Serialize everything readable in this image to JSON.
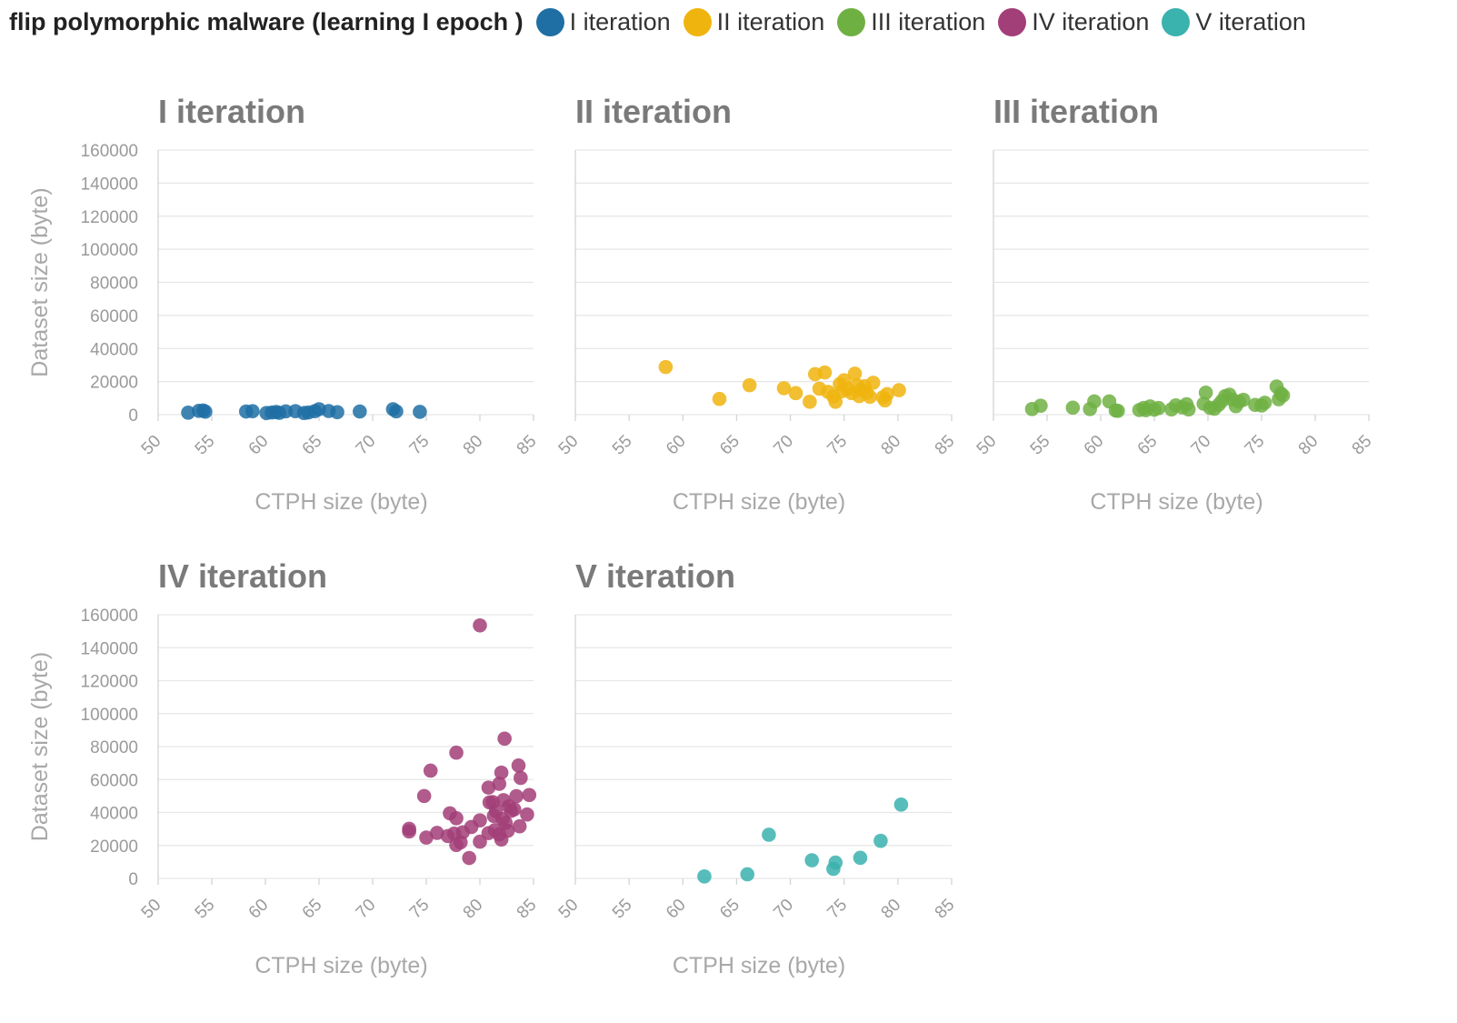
{
  "header": {
    "title": "flip polymorphic malware (learning I epoch )",
    "legend": [
      {
        "label": "I iteration",
        "color": "#1f6fa5"
      },
      {
        "label": "II iteration",
        "color": "#f0b40e"
      },
      {
        "label": "III iteration",
        "color": "#6fb043"
      },
      {
        "label": "IV iteration",
        "color": "#a23e78"
      },
      {
        "label": "V iteration",
        "color": "#3ab2ae"
      }
    ]
  },
  "chart_data": [
    {
      "type": "scatter",
      "title": "I iteration",
      "color": "#1f6fa5",
      "xlabel": "CTPH size (byte)",
      "ylabel": "Dataset size (byte)",
      "xlim": [
        50,
        85
      ],
      "ylim": [
        0,
        160000
      ],
      "xticks": [
        "50",
        "55",
        "60",
        "65",
        "70",
        "75",
        "80",
        "85"
      ],
      "yticks": [
        "0",
        "20000",
        "40000",
        "60000",
        "80000",
        "100000",
        "120000",
        "140000",
        "160000"
      ],
      "points": [
        [
          52.8,
          1200
        ],
        [
          53.8,
          2300
        ],
        [
          54.2,
          2500
        ],
        [
          54.4,
          1800
        ],
        [
          58.2,
          1900
        ],
        [
          58.8,
          2100
        ],
        [
          60.1,
          1000
        ],
        [
          60.6,
          1300
        ],
        [
          61.0,
          1600
        ],
        [
          61.3,
          1100
        ],
        [
          61.9,
          2000
        ],
        [
          62.8,
          2100
        ],
        [
          63.6,
          1000
        ],
        [
          64.0,
          1300
        ],
        [
          64.6,
          2100
        ],
        [
          65.0,
          3300
        ],
        [
          65.9,
          2200
        ],
        [
          66.7,
          1500
        ],
        [
          68.8,
          1900
        ],
        [
          71.9,
          3300
        ],
        [
          72.2,
          2000
        ],
        [
          74.4,
          1700
        ]
      ]
    },
    {
      "type": "scatter",
      "title": "II iteration",
      "color": "#f0b40e",
      "xlabel": "CTPH size (byte)",
      "ylabel": "",
      "xlim": [
        50,
        85
      ],
      "ylim": [
        0,
        160000
      ],
      "xticks": [
        "50",
        "55",
        "60",
        "65",
        "70",
        "75",
        "80",
        "85"
      ],
      "points": [
        [
          58.4,
          28800
        ],
        [
          63.4,
          9500
        ],
        [
          66.2,
          17800
        ],
        [
          69.4,
          16000
        ],
        [
          70.5,
          13000
        ],
        [
          71.8,
          7800
        ],
        [
          72.3,
          24500
        ],
        [
          72.7,
          15700
        ],
        [
          73.2,
          25500
        ],
        [
          73.5,
          13800
        ],
        [
          74.0,
          11000
        ],
        [
          74.2,
          7800
        ],
        [
          74.6,
          18500
        ],
        [
          74.8,
          14200
        ],
        [
          75.0,
          20800
        ],
        [
          75.3,
          15500
        ],
        [
          75.7,
          13000
        ],
        [
          76.0,
          24800
        ],
        [
          76.2,
          17800
        ],
        [
          76.4,
          11200
        ],
        [
          76.6,
          15000
        ],
        [
          76.9,
          17200
        ],
        [
          77.1,
          13200
        ],
        [
          77.4,
          10800
        ],
        [
          77.7,
          19300
        ],
        [
          78.6,
          10500
        ],
        [
          78.8,
          8600
        ],
        [
          79.0,
          12400
        ],
        [
          80.1,
          14800
        ]
      ]
    },
    {
      "type": "scatter",
      "title": "III iteration",
      "color": "#6fb043",
      "xlabel": "CTPH size (byte)",
      "ylabel": "",
      "xlim": [
        50,
        85
      ],
      "ylim": [
        0,
        160000
      ],
      "xticks": [
        "50",
        "55",
        "60",
        "65",
        "70",
        "75",
        "80",
        "85"
      ],
      "points": [
        [
          53.6,
          3400
        ],
        [
          54.4,
          5400
        ],
        [
          57.4,
          4200
        ],
        [
          59.0,
          3400
        ],
        [
          59.4,
          8000
        ],
        [
          60.8,
          8000
        ],
        [
          61.4,
          2500
        ],
        [
          61.6,
          2300
        ],
        [
          63.6,
          2800
        ],
        [
          64.0,
          4000
        ],
        [
          64.2,
          2700
        ],
        [
          64.6,
          5000
        ],
        [
          65.0,
          3000
        ],
        [
          65.4,
          4000
        ],
        [
          66.6,
          3200
        ],
        [
          67.0,
          5600
        ],
        [
          67.6,
          4400
        ],
        [
          68.0,
          6300
        ],
        [
          68.2,
          3200
        ],
        [
          69.6,
          6600
        ],
        [
          69.8,
          13300
        ],
        [
          70.2,
          4100
        ],
        [
          70.6,
          3600
        ],
        [
          71.0,
          6000
        ],
        [
          71.3,
          8300
        ],
        [
          71.6,
          11200
        ],
        [
          72.0,
          12100
        ],
        [
          72.3,
          9000
        ],
        [
          72.6,
          5100
        ],
        [
          72.9,
          7800
        ],
        [
          73.3,
          9000
        ],
        [
          74.4,
          5900
        ],
        [
          75.0,
          5500
        ],
        [
          75.3,
          7200
        ],
        [
          76.4,
          17000
        ],
        [
          76.6,
          9300
        ],
        [
          76.8,
          12800
        ],
        [
          77.0,
          11600
        ]
      ]
    },
    {
      "type": "scatter",
      "title": "IV iteration",
      "color": "#a23e78",
      "xlabel": "CTPH size (byte)",
      "ylabel": "Dataset size (byte)",
      "xlim": [
        50,
        85
      ],
      "ylim": [
        0,
        160000
      ],
      "xticks": [
        "50",
        "55",
        "60",
        "65",
        "70",
        "75",
        "80",
        "85"
      ],
      "yticks": [
        "0",
        "20000",
        "40000",
        "60000",
        "80000",
        "100000",
        "120000",
        "140000",
        "160000"
      ],
      "points": [
        [
          80.0,
          153500
        ],
        [
          82.3,
          84800
        ],
        [
          77.8,
          76300
        ],
        [
          83.6,
          68500
        ],
        [
          75.4,
          65400
        ],
        [
          82.0,
          64200
        ],
        [
          83.8,
          61000
        ],
        [
          81.8,
          57400
        ],
        [
          80.8,
          55100
        ],
        [
          74.8,
          50000
        ],
        [
          83.4,
          49900
        ],
        [
          84.6,
          50600
        ],
        [
          81.2,
          46300
        ],
        [
          82.2,
          47500
        ],
        [
          82.7,
          43700
        ],
        [
          80.9,
          46100
        ],
        [
          81.5,
          40900
        ],
        [
          82.9,
          41000
        ],
        [
          83.2,
          41900
        ],
        [
          77.2,
          39500
        ],
        [
          77.8,
          36500
        ],
        [
          81.3,
          37900
        ],
        [
          82.1,
          36000
        ],
        [
          84.4,
          38800
        ],
        [
          80.0,
          35200
        ],
        [
          82.4,
          33700
        ],
        [
          83.7,
          31600
        ],
        [
          79.2,
          31200
        ],
        [
          82.6,
          28900
        ],
        [
          81.4,
          29300
        ],
        [
          73.4,
          30100
        ],
        [
          73.4,
          28500
        ],
        [
          76.0,
          27600
        ],
        [
          77.0,
          25700
        ],
        [
          77.6,
          27200
        ],
        [
          78.4,
          28000
        ],
        [
          80.8,
          27500
        ],
        [
          81.8,
          26700
        ],
        [
          75.0,
          24800
        ],
        [
          78.2,
          21900
        ],
        [
          77.8,
          20300
        ],
        [
          80.0,
          22300
        ],
        [
          82.0,
          23600
        ],
        [
          79.0,
          12400
        ]
      ]
    },
    {
      "type": "scatter",
      "title": "V iteration",
      "color": "#3ab2ae",
      "xlabel": "CTPH size (byte)",
      "ylabel": "",
      "xlim": [
        50,
        85
      ],
      "ylim": [
        0,
        160000
      ],
      "xticks": [
        "50",
        "55",
        "60",
        "65",
        "70",
        "75",
        "80",
        "85"
      ],
      "points": [
        [
          62.0,
          1200
        ],
        [
          66.0,
          2500
        ],
        [
          68.0,
          26500
        ],
        [
          72.0,
          11000
        ],
        [
          74.0,
          5800
        ],
        [
          74.2,
          9600
        ],
        [
          76.5,
          12500
        ],
        [
          78.4,
          22800
        ],
        [
          80.3,
          44800
        ]
      ]
    }
  ]
}
